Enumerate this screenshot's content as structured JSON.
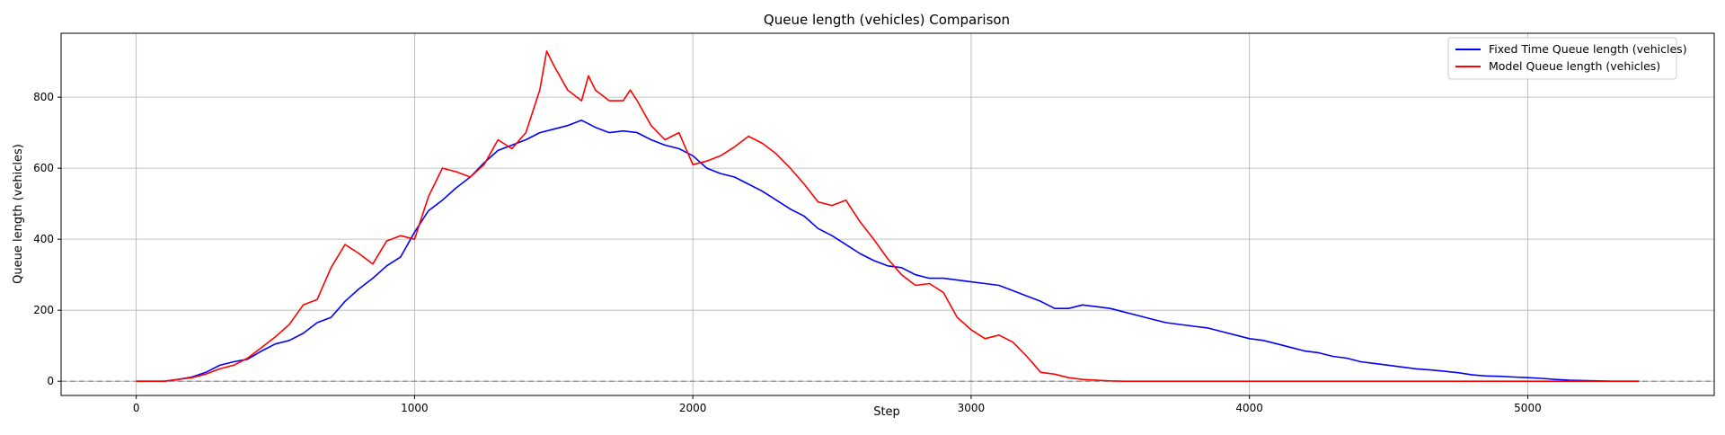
{
  "chart_data": {
    "type": "line",
    "title": "Queue length (vehicles) Comparison",
    "xlabel": "Step",
    "ylabel": "Queue length (vehicles)",
    "xlim": [
      -270,
      5670
    ],
    "ylim": [
      -40,
      980
    ],
    "xticks": [
      0,
      1000,
      2000,
      3000,
      4000,
      5000
    ],
    "yticks": [
      0,
      200,
      400,
      600,
      800
    ],
    "grid": true,
    "legend_position": "top-right",
    "reference_line": {
      "y": 0,
      "style": "dashed",
      "color": "#7f7f7f"
    },
    "series": [
      {
        "name": "Fixed Time Queue length (vehicles)",
        "color": "#0000ff",
        "points": [
          [
            0,
            0
          ],
          [
            100,
            0
          ],
          [
            150,
            5
          ],
          [
            200,
            12
          ],
          [
            250,
            25
          ],
          [
            300,
            45
          ],
          [
            350,
            55
          ],
          [
            400,
            62
          ],
          [
            450,
            85
          ],
          [
            500,
            105
          ],
          [
            550,
            115
          ],
          [
            600,
            135
          ],
          [
            650,
            165
          ],
          [
            700,
            180
          ],
          [
            750,
            225
          ],
          [
            800,
            260
          ],
          [
            850,
            290
          ],
          [
            900,
            325
          ],
          [
            950,
            350
          ],
          [
            1000,
            420
          ],
          [
            1050,
            480
          ],
          [
            1100,
            510
          ],
          [
            1150,
            545
          ],
          [
            1200,
            575
          ],
          [
            1250,
            615
          ],
          [
            1300,
            650
          ],
          [
            1350,
            665
          ],
          [
            1400,
            680
          ],
          [
            1450,
            700
          ],
          [
            1500,
            710
          ],
          [
            1550,
            720
          ],
          [
            1600,
            735
          ],
          [
            1650,
            715
          ],
          [
            1700,
            700
          ],
          [
            1750,
            705
          ],
          [
            1800,
            700
          ],
          [
            1850,
            680
          ],
          [
            1900,
            665
          ],
          [
            1950,
            655
          ],
          [
            2000,
            635
          ],
          [
            2050,
            600
          ],
          [
            2100,
            585
          ],
          [
            2150,
            575
          ],
          [
            2200,
            555
          ],
          [
            2250,
            535
          ],
          [
            2300,
            510
          ],
          [
            2350,
            485
          ],
          [
            2400,
            465
          ],
          [
            2450,
            430
          ],
          [
            2500,
            410
          ],
          [
            2550,
            385
          ],
          [
            2600,
            360
          ],
          [
            2650,
            340
          ],
          [
            2700,
            325
          ],
          [
            2750,
            320
          ],
          [
            2800,
            300
          ],
          [
            2850,
            290
          ],
          [
            2900,
            290
          ],
          [
            2950,
            285
          ],
          [
            3000,
            280
          ],
          [
            3050,
            275
          ],
          [
            3100,
            270
          ],
          [
            3150,
            255
          ],
          [
            3200,
            240
          ],
          [
            3250,
            225
          ],
          [
            3300,
            205
          ],
          [
            3350,
            205
          ],
          [
            3400,
            215
          ],
          [
            3450,
            210
          ],
          [
            3500,
            205
          ],
          [
            3550,
            195
          ],
          [
            3600,
            185
          ],
          [
            3650,
            175
          ],
          [
            3700,
            165
          ],
          [
            3750,
            160
          ],
          [
            3800,
            155
          ],
          [
            3850,
            150
          ],
          [
            3900,
            140
          ],
          [
            3950,
            130
          ],
          [
            4000,
            120
          ],
          [
            4050,
            115
          ],
          [
            4100,
            105
          ],
          [
            4150,
            95
          ],
          [
            4200,
            85
          ],
          [
            4250,
            80
          ],
          [
            4300,
            70
          ],
          [
            4350,
            65
          ],
          [
            4400,
            55
          ],
          [
            4450,
            50
          ],
          [
            4500,
            45
          ],
          [
            4550,
            40
          ],
          [
            4600,
            35
          ],
          [
            4650,
            32
          ],
          [
            4700,
            28
          ],
          [
            4750,
            24
          ],
          [
            4800,
            18
          ],
          [
            4850,
            15
          ],
          [
            4900,
            14
          ],
          [
            4950,
            12
          ],
          [
            5000,
            10
          ],
          [
            5050,
            8
          ],
          [
            5100,
            5
          ],
          [
            5150,
            3
          ],
          [
            5200,
            2
          ],
          [
            5250,
            1
          ],
          [
            5300,
            0
          ],
          [
            5400,
            0
          ]
        ]
      },
      {
        "name": "Model Queue length (vehicles)",
        "color": "#ff0000",
        "points": [
          [
            0,
            0
          ],
          [
            100,
            0
          ],
          [
            150,
            5
          ],
          [
            200,
            10
          ],
          [
            250,
            20
          ],
          [
            300,
            35
          ],
          [
            350,
            45
          ],
          [
            400,
            65
          ],
          [
            450,
            95
          ],
          [
            500,
            125
          ],
          [
            550,
            160
          ],
          [
            600,
            215
          ],
          [
            650,
            230
          ],
          [
            700,
            320
          ],
          [
            750,
            385
          ],
          [
            800,
            360
          ],
          [
            850,
            330
          ],
          [
            900,
            395
          ],
          [
            950,
            410
          ],
          [
            1000,
            400
          ],
          [
            1050,
            520
          ],
          [
            1100,
            600
          ],
          [
            1150,
            590
          ],
          [
            1200,
            575
          ],
          [
            1250,
            610
          ],
          [
            1300,
            680
          ],
          [
            1350,
            655
          ],
          [
            1400,
            700
          ],
          [
            1450,
            820
          ],
          [
            1475,
            930
          ],
          [
            1500,
            890
          ],
          [
            1550,
            820
          ],
          [
            1600,
            790
          ],
          [
            1625,
            860
          ],
          [
            1650,
            820
          ],
          [
            1700,
            790
          ],
          [
            1750,
            790
          ],
          [
            1775,
            820
          ],
          [
            1800,
            790
          ],
          [
            1850,
            720
          ],
          [
            1900,
            680
          ],
          [
            1950,
            700
          ],
          [
            2000,
            610
          ],
          [
            2050,
            620
          ],
          [
            2100,
            635
          ],
          [
            2150,
            660
          ],
          [
            2200,
            690
          ],
          [
            2250,
            670
          ],
          [
            2300,
            640
          ],
          [
            2350,
            600
          ],
          [
            2400,
            555
          ],
          [
            2450,
            505
          ],
          [
            2500,
            495
          ],
          [
            2550,
            510
          ],
          [
            2600,
            450
          ],
          [
            2650,
            400
          ],
          [
            2700,
            345
          ],
          [
            2750,
            300
          ],
          [
            2800,
            270
          ],
          [
            2850,
            275
          ],
          [
            2900,
            250
          ],
          [
            2950,
            180
          ],
          [
            3000,
            145
          ],
          [
            3050,
            120
          ],
          [
            3100,
            130
          ],
          [
            3150,
            110
          ],
          [
            3200,
            70
          ],
          [
            3250,
            25
          ],
          [
            3300,
            20
          ],
          [
            3350,
            10
          ],
          [
            3400,
            5
          ],
          [
            3450,
            3
          ],
          [
            3500,
            1
          ],
          [
            3550,
            0
          ],
          [
            4000,
            0
          ],
          [
            5400,
            0
          ]
        ]
      }
    ]
  }
}
